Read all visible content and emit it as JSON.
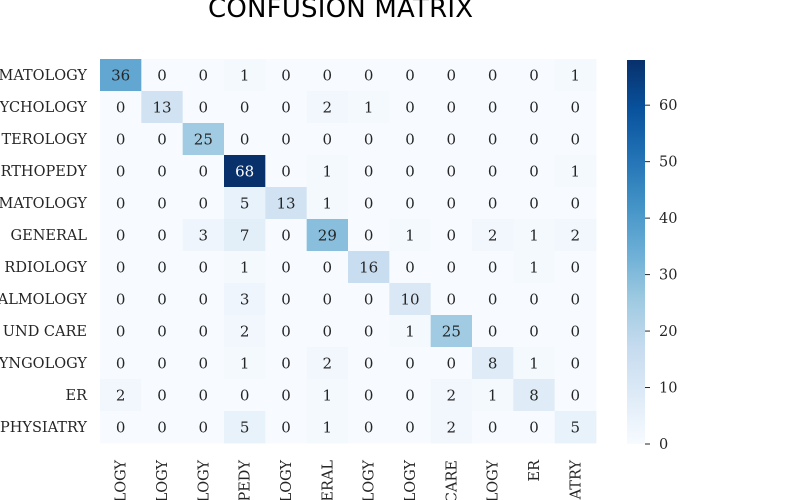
{
  "chart_data": {
    "type": "heatmap",
    "title": "CONFUSION MATRIX",
    "row_labels": [
      "MATOLOGY",
      "YCHOLOGY",
      "TEROLOGY",
      "RTHOPEDY",
      "MATOLOGY",
      "GENERAL",
      "RDIOLOGY",
      "ALMOLOGY",
      "UND CARE",
      "YNGOLOGY",
      "ER",
      "PHYSIATRY"
    ],
    "col_labels": [
      "LOGY",
      "LOGY",
      "LOGY",
      "PEDY",
      "LOGY",
      "ERAL",
      "LOGY",
      "LOGY",
      "CARE",
      "LOGY",
      "ER",
      "IATRY"
    ],
    "values": [
      [
        36,
        0,
        0,
        1,
        0,
        0,
        0,
        0,
        0,
        0,
        0,
        1
      ],
      [
        0,
        13,
        0,
        0,
        0,
        2,
        1,
        0,
        0,
        0,
        0,
        0
      ],
      [
        0,
        0,
        25,
        0,
        0,
        0,
        0,
        0,
        0,
        0,
        0,
        0
      ],
      [
        0,
        0,
        0,
        68,
        0,
        1,
        0,
        0,
        0,
        0,
        0,
        1
      ],
      [
        0,
        0,
        0,
        5,
        13,
        1,
        0,
        0,
        0,
        0,
        0,
        0
      ],
      [
        0,
        0,
        3,
        7,
        0,
        29,
        0,
        1,
        0,
        2,
        1,
        2
      ],
      [
        0,
        0,
        0,
        1,
        0,
        0,
        16,
        0,
        0,
        0,
        1,
        0
      ],
      [
        0,
        0,
        0,
        3,
        0,
        0,
        0,
        10,
        0,
        0,
        0,
        0
      ],
      [
        0,
        0,
        0,
        2,
        0,
        0,
        0,
        1,
        25,
        0,
        0,
        0
      ],
      [
        0,
        0,
        0,
        1,
        0,
        2,
        0,
        0,
        0,
        8,
        1,
        0
      ],
      [
        2,
        0,
        0,
        0,
        0,
        1,
        0,
        0,
        2,
        1,
        8,
        0
      ],
      [
        0,
        0,
        0,
        5,
        0,
        1,
        0,
        0,
        2,
        0,
        0,
        5
      ]
    ],
    "value_range": [
      0,
      68
    ],
    "colormap": "Blues",
    "colorbar": {
      "ticks": [
        0,
        10,
        20,
        30,
        40,
        50,
        60
      ],
      "tick_labels": [
        "0",
        "10",
        "20",
        "30",
        "40",
        "50",
        "60"
      ]
    }
  }
}
